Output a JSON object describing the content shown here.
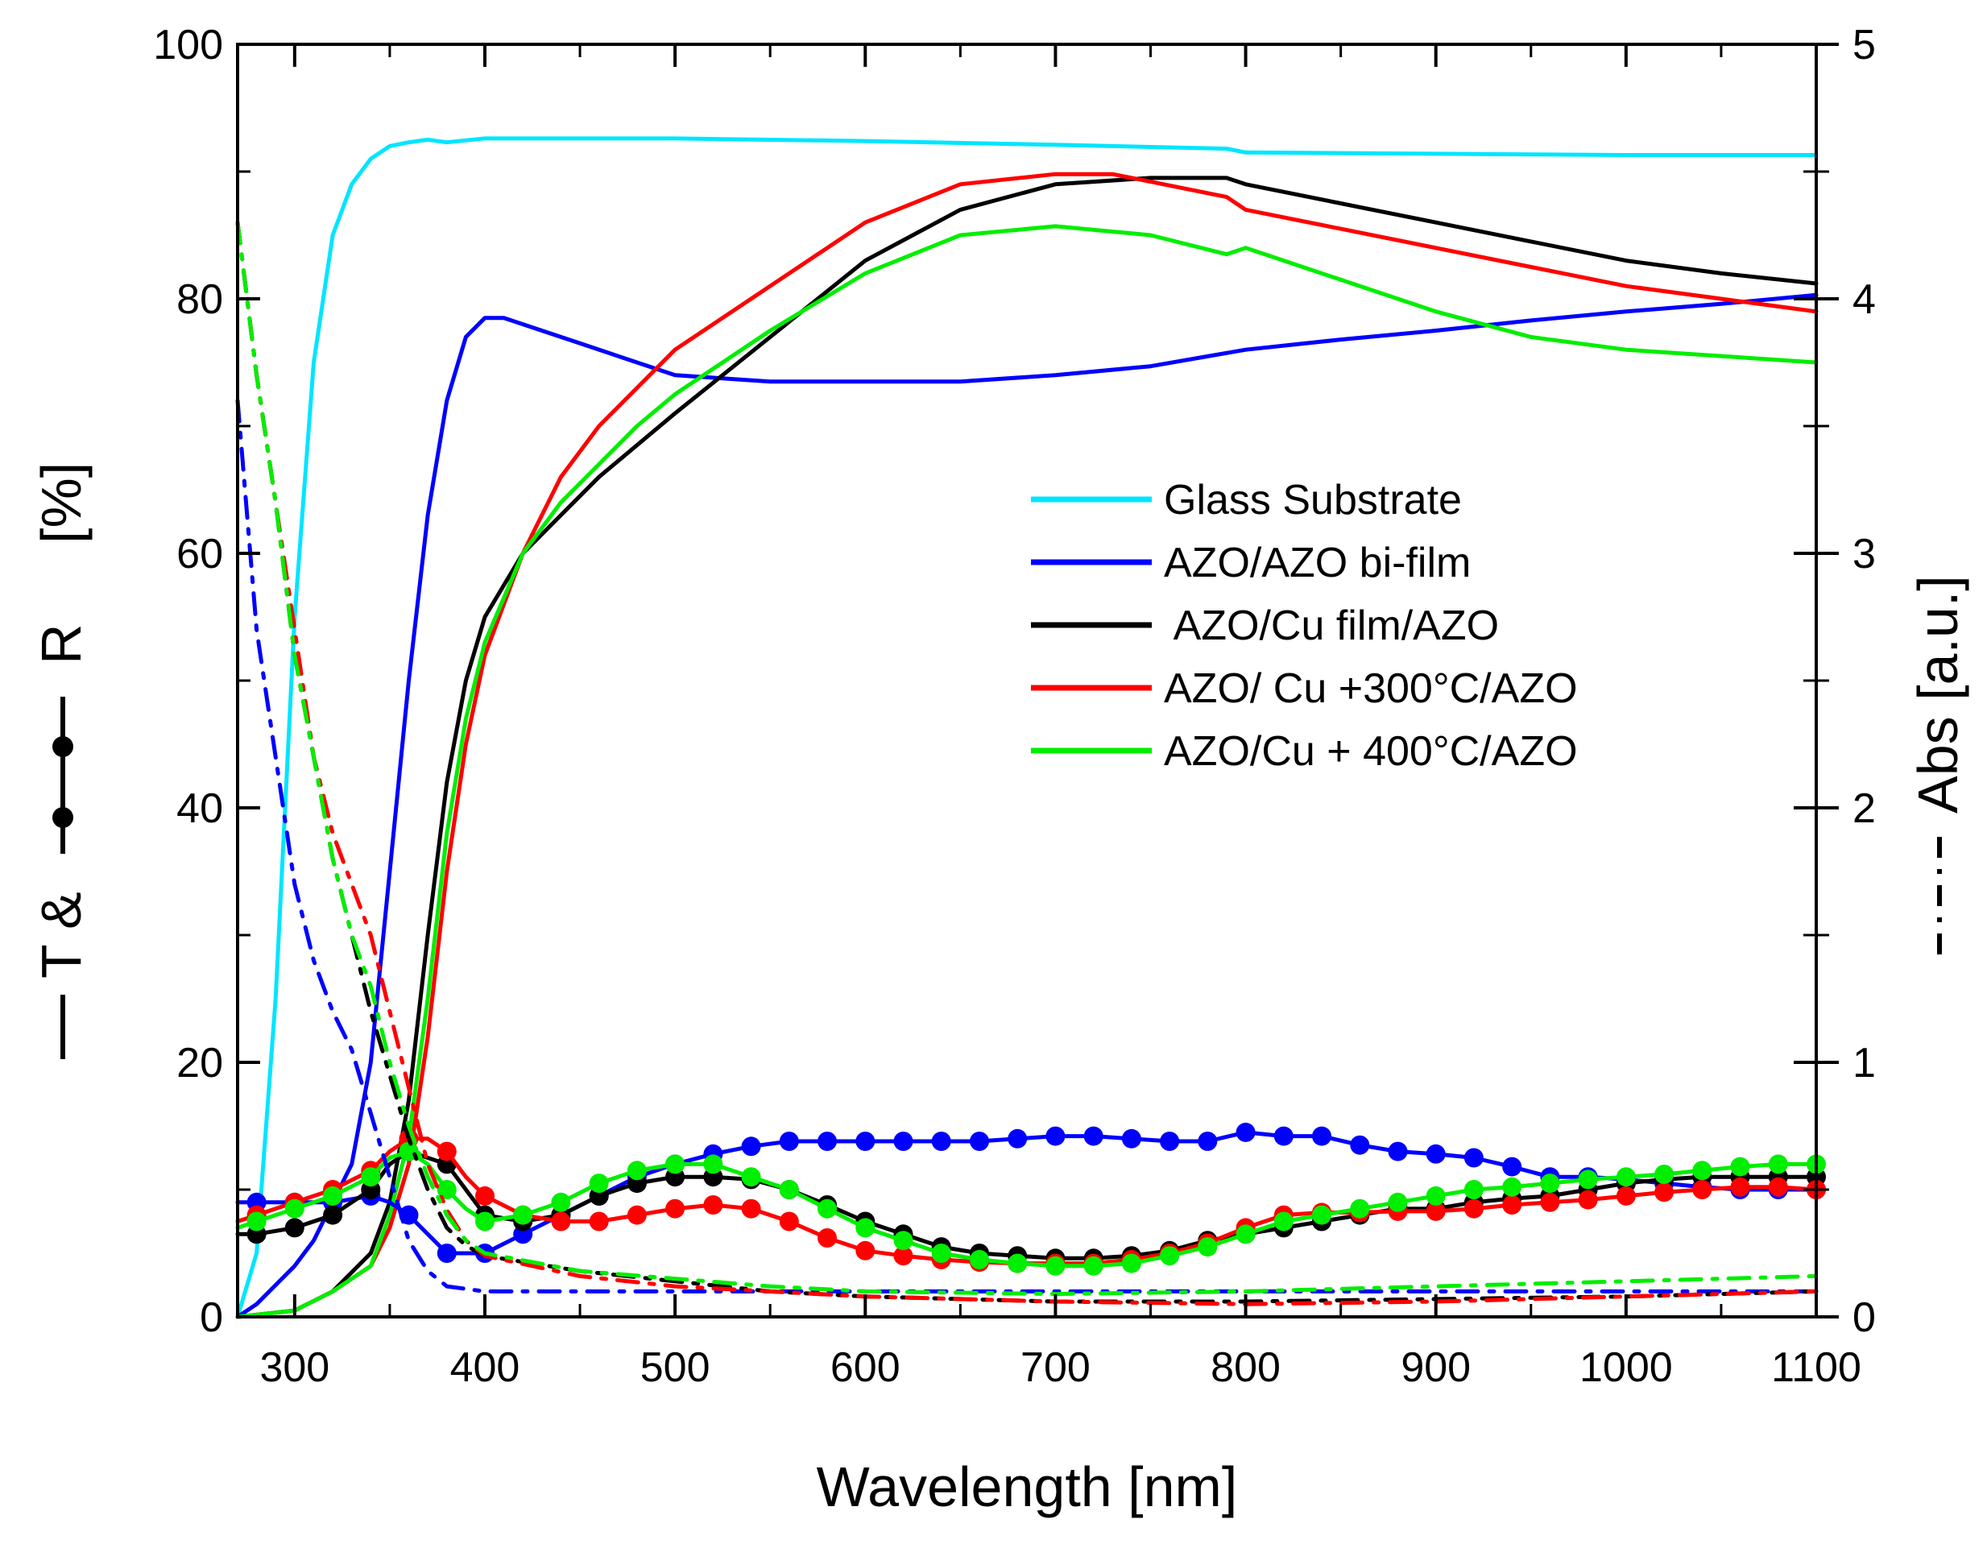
{
  "chart_data": {
    "type": "line",
    "xlabel": "Wavelength [nm]",
    "ylabel_left": {
      "prefix": "T &",
      "suffix": "R",
      "unit": "[%]"
    },
    "ylabel_right": "Abs [a.u.]",
    "xlim": [
      270,
      1100
    ],
    "ylim_left": [
      0,
      100
    ],
    "ylim_right": [
      0,
      5
    ],
    "x_ticks": [
      "300",
      "400",
      "500",
      "600",
      "700",
      "800",
      "900",
      "1000",
      "1100"
    ],
    "x_tick_values": [
      300,
      400,
      500,
      600,
      700,
      800,
      900,
      1000,
      1100
    ],
    "y_left_ticks": [
      "0",
      "20",
      "40",
      "60",
      "80",
      "100"
    ],
    "y_left_tick_values": [
      0,
      20,
      40,
      60,
      80,
      100
    ],
    "y_right_ticks": [
      "0",
      "1",
      "2",
      "3",
      "4",
      "5"
    ],
    "y_right_tick_values": [
      0,
      1,
      2,
      3,
      4,
      5
    ],
    "legend_position": "center-right",
    "legend": [
      {
        "label": "Glass Substrate",
        "color": "#00e5ff"
      },
      {
        "label": "AZO/AZO bi-film",
        "color": "#0000ff"
      },
      {
        "label": " AZO/Cu film/AZO",
        "color": "#000000"
      },
      {
        "label": "AZO/ Cu +300°C/AZO",
        "color": "#ff0000"
      },
      {
        "label": "AZO/Cu + 400°C/AZO",
        "color": "#00ee00"
      }
    ],
    "series": [
      {
        "name": "Glass Substrate",
        "kind": "transmittance",
        "color": "#00e5ff",
        "x": [
          270,
          280,
          290,
          300,
          310,
          320,
          330,
          340,
          350,
          360,
          370,
          380,
          400,
          450,
          500,
          600,
          700,
          790,
          800,
          900,
          1000,
          1100
        ],
        "y": [
          0,
          5,
          25,
          55,
          75,
          85,
          89,
          91,
          92,
          92.3,
          92.5,
          92.3,
          92.6,
          92.6,
          92.6,
          92.4,
          92.1,
          91.8,
          91.5,
          91.4,
          91.3,
          91.3
        ]
      },
      {
        "name": "AZO/AZO bi-film",
        "kind": "transmittance",
        "color": "#0000ff",
        "x": [
          270,
          280,
          290,
          300,
          310,
          320,
          330,
          340,
          350,
          360,
          370,
          380,
          390,
          400,
          410,
          420,
          450,
          500,
          550,
          600,
          650,
          700,
          750,
          800,
          850,
          900,
          950,
          1000,
          1050,
          1100
        ],
        "y": [
          0,
          1,
          2.5,
          4,
          6,
          9,
          12,
          20,
          35,
          50,
          63,
          72,
          77,
          78.5,
          78.5,
          78,
          76.5,
          74,
          73.5,
          73.5,
          73.5,
          74,
          74.7,
          76,
          76.8,
          77.5,
          78.3,
          79,
          79.6,
          80.3
        ]
      },
      {
        "name": " AZO/Cu film/AZO",
        "kind": "transmittance",
        "color": "#000000",
        "x": [
          270,
          300,
          320,
          340,
          350,
          360,
          370,
          380,
          390,
          400,
          420,
          440,
          460,
          500,
          550,
          600,
          650,
          700,
          750,
          790,
          800,
          850,
          900,
          950,
          1000,
          1050,
          1100
        ],
        "y": [
          0,
          0.5,
          2,
          5,
          9,
          17,
          30,
          42,
          50,
          55,
          60,
          63,
          66,
          71,
          77,
          83,
          87,
          89,
          89.5,
          89.5,
          89,
          87.5,
          86,
          84.5,
          83,
          82,
          81.2
        ]
      },
      {
        "name": "AZO/ Cu +300°C/AZO",
        "kind": "transmittance",
        "color": "#ff0000",
        "x": [
          270,
          300,
          320,
          340,
          350,
          360,
          370,
          380,
          390,
          400,
          420,
          440,
          460,
          480,
          500,
          550,
          600,
          650,
          700,
          730,
          750,
          790,
          800,
          850,
          900,
          950,
          1000,
          1050,
          1100
        ],
        "y": [
          0,
          0.5,
          2,
          4,
          7,
          12,
          22,
          35,
          45,
          52,
          60,
          66,
          70,
          73,
          76,
          81,
          86,
          89,
          89.8,
          89.8,
          89.2,
          88,
          87,
          85.5,
          84,
          82.5,
          81,
          80,
          79
        ]
      },
      {
        "name": "AZO/Cu + 400°C/AZO",
        "kind": "transmittance",
        "color": "#00ee00",
        "x": [
          270,
          300,
          320,
          340,
          350,
          360,
          370,
          380,
          390,
          400,
          420,
          440,
          460,
          480,
          500,
          550,
          600,
          650,
          700,
          750,
          790,
          800,
          850,
          900,
          950,
          1000,
          1050,
          1100
        ],
        "y": [
          0,
          0.5,
          2,
          4,
          8,
          14,
          25,
          38,
          47,
          53,
          60,
          64,
          67,
          70,
          72.5,
          77.5,
          82,
          85,
          85.7,
          85,
          83.5,
          84,
          81.5,
          79,
          77,
          76,
          75.5,
          75
        ]
      },
      {
        "name": "AZO/AZO bi-film",
        "kind": "reflectance",
        "color": "#0000ff",
        "x": [
          270,
          280,
          300,
          320,
          340,
          350,
          360,
          370,
          380,
          400,
          420,
          440,
          460,
          480,
          500,
          520,
          540,
          560,
          580,
          600,
          620,
          640,
          660,
          680,
          700,
          720,
          740,
          760,
          780,
          800,
          820,
          840,
          860,
          880,
          900,
          920,
          940,
          960,
          980,
          1000,
          1020,
          1040,
          1060,
          1080,
          1100
        ],
        "y": [
          9,
          9,
          9,
          9,
          9.5,
          9,
          8,
          6.5,
          5,
          5,
          6.5,
          8,
          9.5,
          11,
          12,
          12.8,
          13.4,
          13.8,
          13.8,
          13.8,
          13.8,
          13.8,
          13.8,
          14,
          14.2,
          14.2,
          14,
          13.8,
          13.8,
          14.5,
          14.2,
          14.2,
          13.5,
          13,
          12.8,
          12.5,
          11.8,
          11,
          11,
          10.8,
          10.5,
          10.2,
          10,
          10,
          10
        ]
      },
      {
        "name": " AZO/Cu film/AZO",
        "kind": "reflectance",
        "color": "#000000",
        "x": [
          270,
          280,
          300,
          320,
          340,
          350,
          360,
          370,
          380,
          390,
          400,
          420,
          440,
          460,
          480,
          500,
          520,
          540,
          560,
          580,
          600,
          620,
          640,
          660,
          680,
          700,
          720,
          740,
          760,
          780,
          800,
          820,
          840,
          860,
          880,
          900,
          920,
          940,
          960,
          980,
          1000,
          1020,
          1040,
          1060,
          1080,
          1100
        ],
        "y": [
          6.5,
          6.5,
          7,
          8,
          10,
          12,
          13,
          12.5,
          12,
          10,
          8,
          7.5,
          8,
          9.5,
          10.5,
          11,
          11,
          10.8,
          10,
          8.8,
          7.5,
          6.5,
          5.5,
          5,
          4.8,
          4.6,
          4.6,
          4.8,
          5.2,
          6,
          6.5,
          7,
          7.5,
          8,
          8.5,
          8.5,
          9,
          9.3,
          9.5,
          10,
          10.5,
          10.8,
          11,
          11,
          11,
          11
        ]
      },
      {
        "name": "AZO/ Cu +300°C/AZO",
        "kind": "reflectance",
        "color": "#ff0000",
        "x": [
          270,
          280,
          300,
          320,
          340,
          350,
          360,
          370,
          380,
          390,
          400,
          420,
          440,
          460,
          480,
          500,
          520,
          540,
          560,
          580,
          600,
          620,
          640,
          660,
          680,
          700,
          720,
          740,
          760,
          780,
          800,
          820,
          840,
          860,
          880,
          900,
          920,
          940,
          960,
          980,
          1000,
          1020,
          1040,
          1060,
          1080,
          1100
        ],
        "y": [
          7.5,
          8,
          9,
          10,
          11.5,
          13,
          14,
          14,
          13,
          11,
          9.5,
          8,
          7.5,
          7.5,
          8,
          8.5,
          8.8,
          8.5,
          7.5,
          6.2,
          5.2,
          4.8,
          4.5,
          4.3,
          4.2,
          4.2,
          4.2,
          4.5,
          5,
          5.8,
          7,
          8,
          8.2,
          8.2,
          8.3,
          8.3,
          8.5,
          8.8,
          9,
          9.2,
          9.5,
          9.8,
          10,
          10.2,
          10.2,
          10
        ]
      },
      {
        "name": "AZO/Cu + 400°C/AZO",
        "kind": "reflectance",
        "color": "#00ee00",
        "x": [
          270,
          280,
          300,
          320,
          340,
          350,
          360,
          370,
          380,
          390,
          400,
          420,
          440,
          460,
          480,
          500,
          520,
          540,
          560,
          580,
          600,
          620,
          640,
          660,
          680,
          700,
          720,
          740,
          760,
          780,
          800,
          820,
          840,
          860,
          880,
          900,
          920,
          940,
          960,
          980,
          1000,
          1020,
          1040,
          1060,
          1080,
          1100
        ],
        "y": [
          7,
          7.5,
          8.5,
          9.5,
          11,
          12.5,
          13,
          12,
          10,
          8.5,
          7.5,
          8,
          9,
          10.5,
          11.5,
          12,
          12,
          11,
          10,
          8.5,
          7,
          6,
          5,
          4.5,
          4.2,
          4,
          4,
          4.2,
          4.8,
          5.5,
          6.5,
          7.5,
          8,
          8.5,
          9,
          9.5,
          10,
          10.2,
          10.5,
          10.8,
          11,
          11.2,
          11.5,
          11.8,
          12,
          12
        ]
      },
      {
        "name": "AZO/AZO bi-film",
        "kind": "absorbance",
        "color": "#0000ff",
        "x": [
          270,
          280,
          290,
          300,
          310,
          320,
          330,
          340,
          350,
          360,
          370,
          380,
          400,
          450,
          500,
          600,
          700,
          800,
          900,
          1000,
          1100
        ],
        "y": [
          3.6,
          2.7,
          2.2,
          1.7,
          1.4,
          1.2,
          1.05,
          0.8,
          0.55,
          0.3,
          0.18,
          0.12,
          0.1,
          0.1,
          0.1,
          0.1,
          0.1,
          0.1,
          0.1,
          0.1,
          0.1
        ]
      },
      {
        "name": " AZO/Cu film/AZO",
        "kind": "absorbance",
        "color": "#000000",
        "x": [
          270,
          280,
          290,
          300,
          310,
          320,
          330,
          340,
          350,
          360,
          370,
          380,
          390,
          400,
          450,
          500,
          550,
          600,
          700,
          800,
          900,
          1000,
          1100
        ],
        "y": [
          4.3,
          3.7,
          3.2,
          2.6,
          2.2,
          1.8,
          1.5,
          1.2,
          0.95,
          0.7,
          0.5,
          0.35,
          0.28,
          0.24,
          0.18,
          0.14,
          0.1,
          0.08,
          0.06,
          0.06,
          0.07,
          0.08,
          0.1
        ]
      },
      {
        "name": "AZO/ Cu +300°C/AZO",
        "kind": "absorbance",
        "color": "#ff0000",
        "x": [
          270,
          280,
          290,
          300,
          310,
          320,
          330,
          340,
          350,
          360,
          370,
          380,
          390,
          400,
          450,
          500,
          550,
          600,
          700,
          800,
          900,
          1000,
          1100
        ],
        "y": [
          4.3,
          3.7,
          3.2,
          2.7,
          2.2,
          1.9,
          1.7,
          1.5,
          1.2,
          0.9,
          0.6,
          0.42,
          0.3,
          0.24,
          0.16,
          0.12,
          0.1,
          0.08,
          0.06,
          0.05,
          0.06,
          0.08,
          0.1
        ]
      },
      {
        "name": "AZO/Cu + 400°C/AZO",
        "kind": "absorbance",
        "color": "#00ee00",
        "x": [
          270,
          280,
          290,
          300,
          310,
          320,
          330,
          340,
          350,
          360,
          370,
          380,
          390,
          400,
          450,
          500,
          550,
          600,
          700,
          800,
          900,
          1000,
          1100
        ],
        "y": [
          4.3,
          3.7,
          3.2,
          2.6,
          2.2,
          1.8,
          1.5,
          1.3,
          1.0,
          0.75,
          0.55,
          0.4,
          0.3,
          0.25,
          0.18,
          0.15,
          0.12,
          0.1,
          0.09,
          0.1,
          0.12,
          0.14,
          0.16
        ]
      }
    ]
  }
}
